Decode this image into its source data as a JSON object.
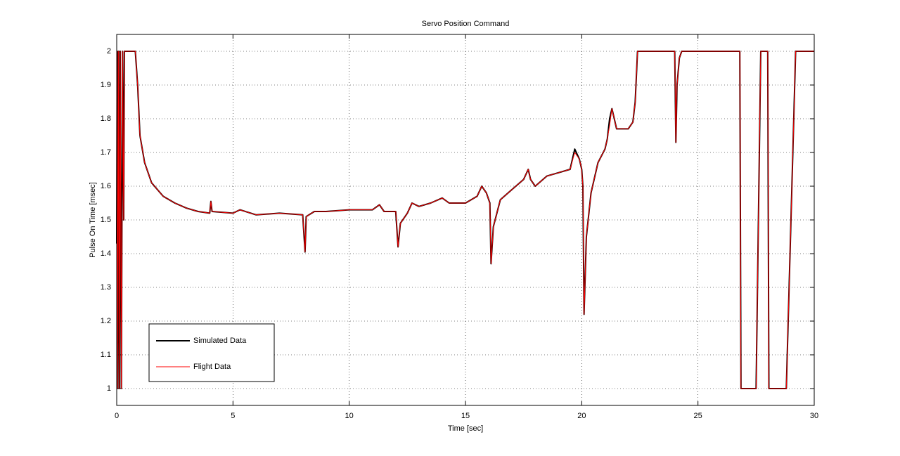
{
  "chart_data": {
    "type": "line",
    "title": "Servo Position Command",
    "x_label": "Time [sec]",
    "y_label": "Pulse On Time [msec]",
    "x": [
      0,
      0.02,
      0.05,
      0.08,
      0.12,
      0.15,
      0.2,
      0.25,
      0.3,
      0.33,
      0.8,
      0.9,
      1.0,
      1.2,
      1.5,
      2,
      2.5,
      3,
      3.5,
      4,
      4.05,
      4.1,
      5,
      5.3,
      6,
      7,
      8,
      8.1,
      8.15,
      8.5,
      9,
      10,
      11,
      11.3,
      11.5,
      12,
      12.1,
      12.2,
      12.5,
      12.7,
      13,
      13.5,
      14,
      14.3,
      15,
      15.5,
      15.7,
      15.9,
      16.05,
      16.1,
      16.2,
      16.5,
      17,
      17.5,
      17.7,
      17.8,
      18,
      18.5,
      19,
      19.5,
      19.7,
      19.9,
      20,
      20.05,
      20.1,
      20.2,
      20.4,
      20.7,
      21,
      21.1,
      21.2,
      21.3,
      21.5,
      22,
      22.2,
      22.3,
      22.4,
      24,
      24.05,
      24.1,
      24.2,
      24.3,
      26.8,
      26.85,
      27.5,
      27.7,
      28,
      28.05,
      28.8,
      29.2,
      30
    ],
    "series": [
      {
        "name": "Simulated Data",
        "color": "#000000",
        "values": [
          1.43,
          2,
          1,
          2,
          1,
          2,
          1,
          2,
          1.5,
          2,
          2,
          1.9,
          1.75,
          1.67,
          1.61,
          1.57,
          1.55,
          1.535,
          1.525,
          1.52,
          1.555,
          1.525,
          1.52,
          1.53,
          1.515,
          1.52,
          1.515,
          1.405,
          1.51,
          1.525,
          1.525,
          1.53,
          1.53,
          1.545,
          1.525,
          1.525,
          1.42,
          1.49,
          1.52,
          1.55,
          1.54,
          1.55,
          1.565,
          1.55,
          1.55,
          1.57,
          1.6,
          1.58,
          1.55,
          1.37,
          1.48,
          1.56,
          1.59,
          1.62,
          1.65,
          1.62,
          1.6,
          1.63,
          1.64,
          1.65,
          1.71,
          1.68,
          1.65,
          1.6,
          1.22,
          1.45,
          1.58,
          1.67,
          1.71,
          1.74,
          1.8,
          1.83,
          1.77,
          1.77,
          1.79,
          1.85,
          2,
          2,
          1.73,
          1.9,
          1.98,
          2,
          2,
          1,
          1,
          2,
          2,
          1,
          1,
          2,
          2
        ]
      },
      {
        "name": "Flight Data",
        "color": "#ff0000",
        "values": [
          1.0,
          2,
          1,
          2,
          1,
          2,
          1,
          2,
          1.5,
          2,
          2,
          1.9,
          1.75,
          1.67,
          1.61,
          1.57,
          1.55,
          1.535,
          1.525,
          1.52,
          1.555,
          1.525,
          1.52,
          1.53,
          1.515,
          1.52,
          1.515,
          1.405,
          1.51,
          1.525,
          1.525,
          1.53,
          1.53,
          1.545,
          1.525,
          1.525,
          1.42,
          1.49,
          1.52,
          1.55,
          1.54,
          1.55,
          1.565,
          1.55,
          1.55,
          1.57,
          1.6,
          1.58,
          1.55,
          1.37,
          1.48,
          1.56,
          1.59,
          1.62,
          1.65,
          1.62,
          1.6,
          1.63,
          1.64,
          1.65,
          1.7,
          1.68,
          1.65,
          1.6,
          1.22,
          1.45,
          1.58,
          1.67,
          1.71,
          1.74,
          1.78,
          1.83,
          1.77,
          1.77,
          1.79,
          1.85,
          2,
          2,
          1.73,
          1.9,
          1.98,
          2,
          2,
          1,
          1,
          2,
          2,
          1,
          1,
          2,
          2
        ]
      }
    ],
    "xlim": [
      0,
      30
    ],
    "xticks": [
      0,
      5,
      10,
      15,
      20,
      25,
      30
    ],
    "ylim": [
      0.95,
      2.05
    ],
    "yticks": [
      1,
      1.1,
      1.2,
      1.3,
      1.4,
      1.5,
      1.6,
      1.7,
      1.8,
      1.9,
      2
    ],
    "grid": true,
    "legend": "lower left"
  }
}
